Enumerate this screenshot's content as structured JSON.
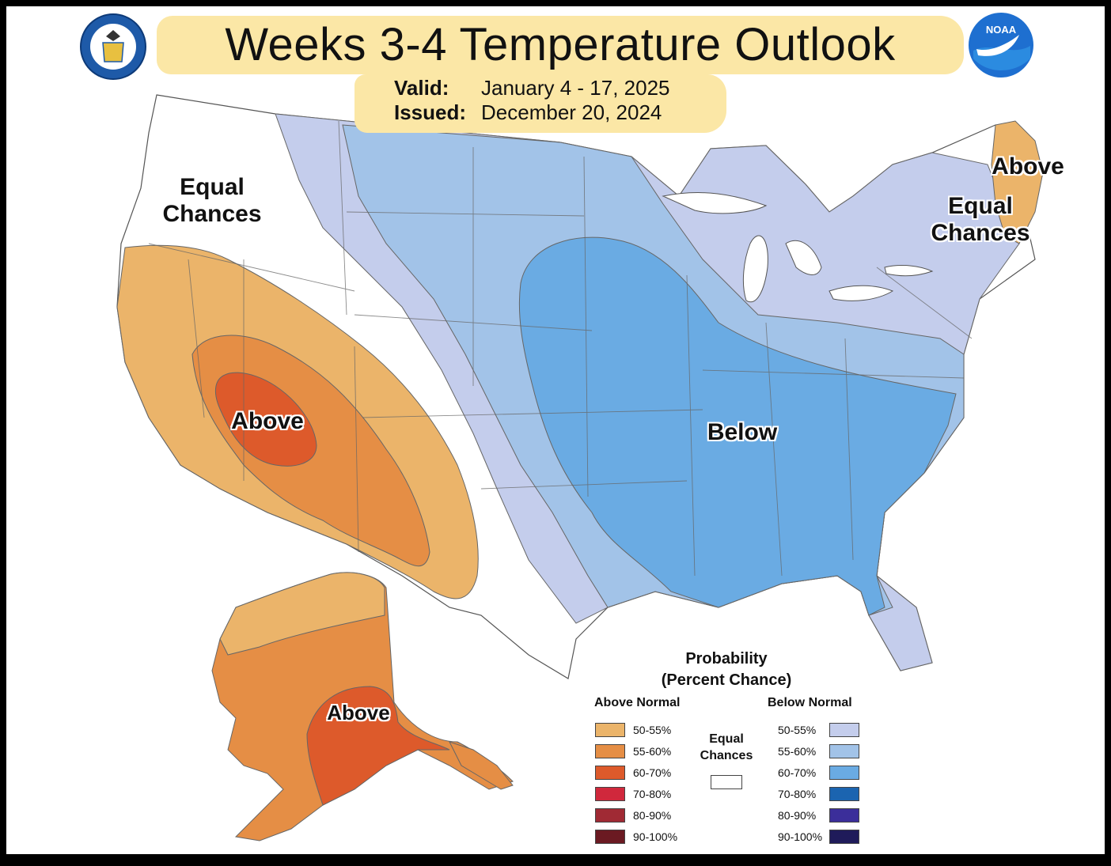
{
  "header": {
    "title": "Weeks 3-4 Temperature Outlook",
    "valid_label": "Valid:",
    "valid_value": "January 4 - 17, 2025",
    "issued_label": "Issued:",
    "issued_value": "December 20, 2024"
  },
  "logos": {
    "doc_seal": "department-of-commerce-seal-icon",
    "noaa": "NOAA",
    "noaa_icon": "noaa-logo-icon"
  },
  "map_labels": {
    "west_equal": "Equal Chances",
    "southwest_above": "Above",
    "central_below": "Below",
    "maine_above": "Above",
    "northeast_equal": "Equal Chances",
    "alaska_above": "Above"
  },
  "legend": {
    "title_line1": "Probability",
    "title_line2": "(Percent Chance)",
    "above_header": "Above Normal",
    "below_header": "Below Normal",
    "equal_label": "Equal Chances",
    "above": [
      {
        "label": "50-55%",
        "color": "#ebb46a"
      },
      {
        "label": "55-60%",
        "color": "#e58e45"
      },
      {
        "label": "60-70%",
        "color": "#dd5a2b"
      },
      {
        "label": "70-80%",
        "color": "#d0283c"
      },
      {
        "label": "80-90%",
        "color": "#a02a34"
      },
      {
        "label": "90-100%",
        "color": "#6b1a22"
      }
    ],
    "below": [
      {
        "label": "50-55%",
        "color": "#c4cdec"
      },
      {
        "label": "55-60%",
        "color": "#a2c3e8"
      },
      {
        "label": "60-70%",
        "color": "#6aabe3"
      },
      {
        "label": "70-80%",
        "color": "#1b64b0"
      },
      {
        "label": "80-90%",
        "color": "#3b2e9a"
      },
      {
        "label": "90-100%",
        "color": "#1f1b5a"
      }
    ]
  },
  "colors": {
    "above_50_55": "#ebb46a",
    "above_55_60": "#e58e45",
    "above_60_70": "#dd5a2b",
    "below_50_55": "#c4cdec",
    "below_55_60": "#a2c3e8",
    "below_60_70": "#6aabe3",
    "title_highlight": "#fbe7a6"
  }
}
